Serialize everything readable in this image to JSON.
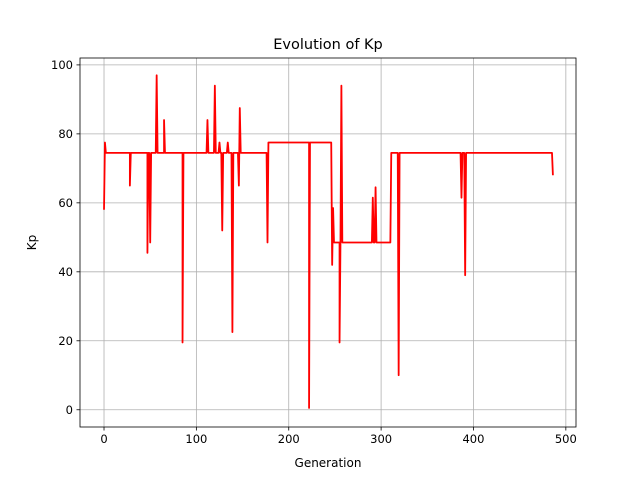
{
  "chart_data": {
    "type": "line",
    "title": "Evolution of Kp",
    "xlabel": "Generation",
    "ylabel": "Kp",
    "xlim": [
      -26,
      511
    ],
    "ylim": [
      -5,
      102
    ],
    "xticks": [
      0,
      100,
      200,
      300,
      400,
      500
    ],
    "yticks": [
      0,
      20,
      40,
      60,
      80,
      100
    ],
    "grid": true,
    "series": [
      {
        "name": "",
        "color": "#ff0000",
        "points": [
          [
            0,
            58
          ],
          [
            1,
            77.5
          ],
          [
            2,
            74.5
          ],
          [
            28,
            74.5
          ],
          [
            28,
            65
          ],
          [
            29,
            74.5
          ],
          [
            47,
            74.5
          ],
          [
            47,
            45.5
          ],
          [
            48,
            74.5
          ],
          [
            49,
            74.5
          ],
          [
            50,
            48.5
          ],
          [
            51,
            74.5
          ],
          [
            56,
            74.5
          ],
          [
            57,
            97
          ],
          [
            58,
            74.5
          ],
          [
            65,
            74.5
          ],
          [
            65,
            84
          ],
          [
            66,
            74.5
          ],
          [
            85,
            74.5
          ],
          [
            85,
            19.5
          ],
          [
            86,
            74.5
          ],
          [
            111,
            74.5
          ],
          [
            112,
            84
          ],
          [
            113,
            74.5
          ],
          [
            119,
            74.5
          ],
          [
            120,
            94
          ],
          [
            121,
            74.5
          ],
          [
            124,
            74.5
          ],
          [
            125,
            77.5
          ],
          [
            126,
            74.5
          ],
          [
            127,
            74.5
          ],
          [
            128,
            52
          ],
          [
            129,
            74.5
          ],
          [
            133,
            74.5
          ],
          [
            134,
            77.5
          ],
          [
            135,
            74.5
          ],
          [
            138,
            74.5
          ],
          [
            139,
            22.5
          ],
          [
            140,
            74.5
          ],
          [
            145,
            74.5
          ],
          [
            146,
            65
          ],
          [
            147,
            87.5
          ],
          [
            148,
            74.5
          ],
          [
            176,
            74.5
          ],
          [
            177,
            48.5
          ],
          [
            178,
            77.5
          ],
          [
            220,
            77.5
          ],
          [
            222,
            77.5
          ],
          [
            222,
            0.5
          ],
          [
            223,
            77.5
          ],
          [
            246,
            77.5
          ],
          [
            247,
            42
          ],
          [
            248,
            58.5
          ],
          [
            249,
            48.5
          ],
          [
            255,
            48.5
          ],
          [
            255,
            19.5
          ],
          [
            256,
            48.5
          ],
          [
            257,
            94
          ],
          [
            258,
            48.5
          ],
          [
            290,
            48.5
          ],
          [
            291,
            61.5
          ],
          [
            292,
            48.5
          ],
          [
            293,
            48.5
          ],
          [
            294,
            64.5
          ],
          [
            295,
            48.5
          ],
          [
            310,
            48.5
          ],
          [
            311,
            74.5
          ],
          [
            318,
            74.5
          ],
          [
            319,
            10
          ],
          [
            320,
            74.5
          ],
          [
            386,
            74.5
          ],
          [
            387,
            61.5
          ],
          [
            388,
            74.5
          ],
          [
            390,
            74.5
          ],
          [
            391,
            39
          ],
          [
            392,
            74.5
          ],
          [
            485,
            74.5
          ],
          [
            486,
            68
          ]
        ]
      }
    ]
  }
}
